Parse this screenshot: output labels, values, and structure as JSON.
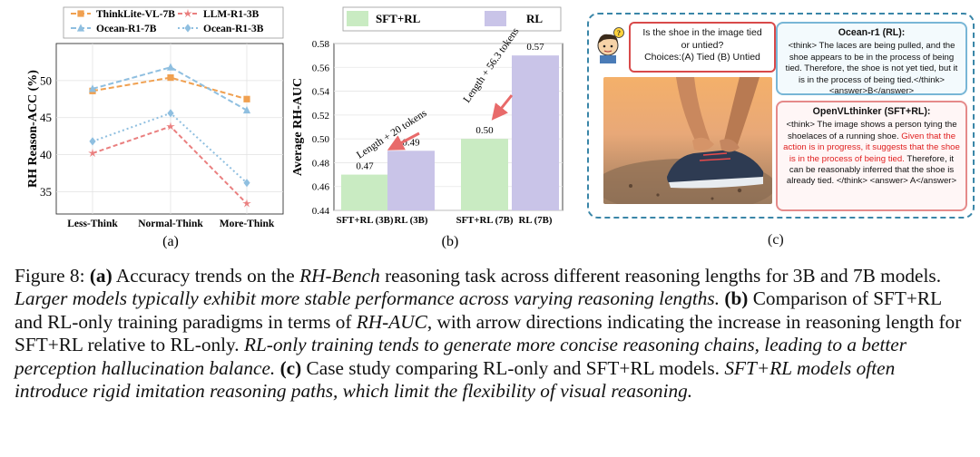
{
  "panel_a": {
    "sublabel": "(a)",
    "chart_data": {
      "type": "line",
      "title": "",
      "xlabel": "",
      "ylabel": "RH Reason-ACC (%)",
      "categories": [
        "Less-Think",
        "Normal-Think",
        "More-Think"
      ],
      "ylim": [
        32,
        55
      ],
      "yticks": [
        35,
        40,
        45,
        50
      ],
      "series": [
        {
          "name": "ThinkLite-VL-7B",
          "values": [
            48.6,
            50.4,
            47.5
          ],
          "color": "#f0a050",
          "marker": "square",
          "dash": "6,3"
        },
        {
          "name": "LLM-R1-3B",
          "values": [
            40.2,
            43.8,
            33.4
          ],
          "color": "#ea7f7f",
          "marker": "star",
          "dash": "5,3"
        },
        {
          "name": "Ocean-R1-7B",
          "values": [
            48.9,
            51.8,
            46.0
          ],
          "color": "#8fbfe0",
          "marker": "triangle",
          "dash": "6,3"
        },
        {
          "name": "Ocean-R1-3B",
          "values": [
            41.8,
            45.6,
            36.2
          ],
          "color": "#8fbfe0",
          "marker": "diamond",
          "dash": "2,3"
        }
      ],
      "legend": "top",
      "grid": true
    }
  },
  "panel_b": {
    "sublabel": "(b)",
    "chart_data": {
      "type": "bar",
      "title": "",
      "xlabel": "",
      "ylabel": "Average RH-AUC",
      "categories": [
        "SFT+RL (3B)",
        "RL (3B)",
        "SFT+RL (7B)",
        "RL (7B)"
      ],
      "values": [
        0.47,
        0.49,
        0.5,
        0.57
      ],
      "data_labels": [
        "0.47",
        "0.49",
        "0.50",
        "0.57"
      ],
      "bar_series": [
        "SFT+RL",
        "RL",
        "SFT+RL",
        "RL"
      ],
      "ylim": [
        0.44,
        0.58
      ],
      "yticks": [
        0.44,
        0.46,
        0.48,
        0.5,
        0.52,
        0.54,
        0.56,
        0.58
      ],
      "legend_entries": [
        {
          "name": "SFT+RL",
          "color": "#c9ebc2"
        },
        {
          "name": "RL",
          "color": "#c9c4e8"
        }
      ],
      "annotations": [
        "Length + 20 tokens",
        "Length + 56.3 tokens"
      ],
      "legend": "top",
      "grid": true
    }
  },
  "panel_c": {
    "sublabel": "(c)",
    "question_line1": "Is the shoe in the image tied",
    "question_line2": "or untied?",
    "question_line3": "Choices:(A) Tied (B) Untied",
    "ocean_title": "Ocean-r1 (RL):",
    "ocean_text": "<think> The laces are being pulled, and the shoe appears to be in the process of being tied. Therefore, the shoe is not yet tied, but it is in the process of being tied.</think><answer>B</answer>",
    "openvl_title": "OpenVLthinker (SFT+RL):",
    "openvl_text_a": "<think> The image shows a person tying the shoelaces of a running shoe. ",
    "openvl_text_red": "Given that the action is in progress, it suggests that the shoe is in the process of being tied.",
    "openvl_text_b": " Therefore, it can be reasonably inferred that the shoe is already tied. </think> <answer> A</answer>"
  },
  "caption": {
    "fig_label": "Figure 8: ",
    "a_label": "(a)",
    "a_text1": " Accuracy trends on the ",
    "a_em1": "RH-Bench",
    "a_text2": " reasoning task across different reasoning lengths for 3B and 7B models. ",
    "a_em2": "Larger models typically exhibit more stable performance across varying reasoning lengths.",
    "b_label": "(b)",
    "b_text1": " Comparison of SFT+RL and RL-only training paradigms in terms of ",
    "b_em1": "RH-AUC",
    "b_text2": ", with arrow directions indicating the increase in reasoning length for SFT+RL relative to RL-only. ",
    "b_em2": "RL-only training tends to generate more concise reasoning chains, leading to a better perception hallucination balance.",
    "c_label": "(c)",
    "c_text1": " Case study comparing RL-only and SFT+RL models. ",
    "c_em1": "SFT+RL models often introduce rigid imitation reasoning paths, which limit the flexibility of visual reasoning."
  },
  "colors": {
    "sft_rl": "#c9ebc2",
    "rl": "#c9c4e8",
    "arrow": "#e86a6a",
    "panel_c_border": "#3a86a8"
  }
}
